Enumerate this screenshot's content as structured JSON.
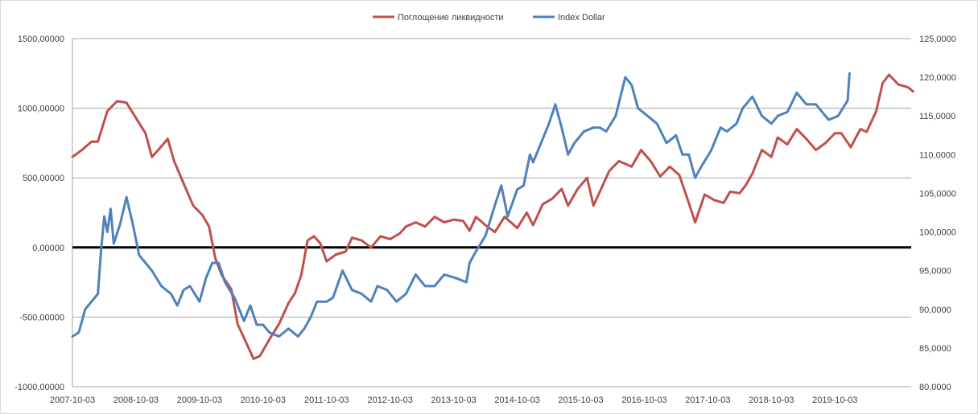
{
  "chart_data": {
    "type": "line",
    "title": "",
    "legend_position": "top",
    "grid": true,
    "x_tick_labels": [
      "2007-10-03",
      "2008-10-03",
      "2009-10-03",
      "2010-10-03",
      "2011-10-03",
      "2012-10-03",
      "2013-10-03",
      "2014-10-03",
      "2015-10-03",
      "2016-10-03",
      "2017-10-03",
      "2018-10-03",
      "2019-10-03"
    ],
    "y_left": {
      "range": [
        -1000,
        1500
      ],
      "ticks": [
        -1000,
        -500,
        0,
        500,
        1000,
        1500
      ],
      "tick_labels": [
        "-1000,00000",
        "-500,00000",
        "0,00000",
        "500,00000",
        "1000,00000",
        "1500,00000"
      ]
    },
    "y_right": {
      "range": [
        80,
        125
      ],
      "ticks": [
        80,
        85,
        90,
        95,
        100,
        105,
        110,
        115,
        120,
        125
      ],
      "tick_labels": [
        "80,0000",
        "85,0000",
        "90,0000",
        "95,0000",
        "100,0000",
        "105,0000",
        "110,0000",
        "115,0000",
        "120,0000",
        "125,0000"
      ]
    },
    "series": [
      {
        "name": "Поглощение ликвидности",
        "axis": "left",
        "color": "#c0504d",
        "points": [
          [
            2007.75,
            650
          ],
          [
            2007.9,
            700
          ],
          [
            2008.05,
            760
          ],
          [
            2008.15,
            760
          ],
          [
            2008.3,
            980
          ],
          [
            2008.45,
            1050
          ],
          [
            2008.6,
            1040
          ],
          [
            2008.75,
            930
          ],
          [
            2008.9,
            820
          ],
          [
            2009.0,
            650
          ],
          [
            2009.1,
            700
          ],
          [
            2009.25,
            780
          ],
          [
            2009.35,
            620
          ],
          [
            2009.5,
            460
          ],
          [
            2009.65,
            300
          ],
          [
            2009.8,
            230
          ],
          [
            2009.9,
            150
          ],
          [
            2010.0,
            -80
          ],
          [
            2010.1,
            -200
          ],
          [
            2010.25,
            -300
          ],
          [
            2010.35,
            -550
          ],
          [
            2010.5,
            -700
          ],
          [
            2010.6,
            -800
          ],
          [
            2010.7,
            -780
          ],
          [
            2010.85,
            -660
          ],
          [
            2011.0,
            -550
          ],
          [
            2011.15,
            -400
          ],
          [
            2011.25,
            -330
          ],
          [
            2011.35,
            -200
          ],
          [
            2011.45,
            50
          ],
          [
            2011.55,
            80
          ],
          [
            2011.65,
            30
          ],
          [
            2011.75,
            -100
          ],
          [
            2011.9,
            -50
          ],
          [
            2012.05,
            -30
          ],
          [
            2012.15,
            70
          ],
          [
            2012.3,
            50
          ],
          [
            2012.45,
            0
          ],
          [
            2012.6,
            80
          ],
          [
            2012.75,
            60
          ],
          [
            2012.9,
            100
          ],
          [
            2013.0,
            150
          ],
          [
            2013.15,
            180
          ],
          [
            2013.3,
            150
          ],
          [
            2013.45,
            220
          ],
          [
            2013.6,
            180
          ],
          [
            2013.75,
            200
          ],
          [
            2013.9,
            190
          ],
          [
            2014.0,
            120
          ],
          [
            2014.1,
            220
          ],
          [
            2014.25,
            160
          ],
          [
            2014.4,
            110
          ],
          [
            2014.55,
            220
          ],
          [
            2014.75,
            140
          ],
          [
            2014.9,
            250
          ],
          [
            2015.0,
            160
          ],
          [
            2015.15,
            310
          ],
          [
            2015.3,
            350
          ],
          [
            2015.45,
            420
          ],
          [
            2015.55,
            300
          ],
          [
            2015.7,
            420
          ],
          [
            2015.85,
            500
          ],
          [
            2015.95,
            300
          ],
          [
            2016.1,
            450
          ],
          [
            2016.2,
            550
          ],
          [
            2016.35,
            620
          ],
          [
            2016.55,
            580
          ],
          [
            2016.7,
            700
          ],
          [
            2016.85,
            620
          ],
          [
            2017.0,
            510
          ],
          [
            2017.15,
            580
          ],
          [
            2017.3,
            520
          ],
          [
            2017.45,
            320
          ],
          [
            2017.55,
            180
          ],
          [
            2017.7,
            380
          ],
          [
            2017.85,
            340
          ],
          [
            2018.0,
            320
          ],
          [
            2018.1,
            400
          ],
          [
            2018.25,
            390
          ],
          [
            2018.35,
            450
          ],
          [
            2018.45,
            530
          ],
          [
            2018.6,
            700
          ],
          [
            2018.75,
            650
          ],
          [
            2018.85,
            790
          ],
          [
            2019.0,
            740
          ],
          [
            2019.15,
            850
          ],
          [
            2019.3,
            780
          ],
          [
            2019.45,
            700
          ],
          [
            2019.6,
            750
          ],
          [
            2019.75,
            820
          ],
          [
            2019.85,
            820
          ],
          [
            2020.0,
            720
          ],
          [
            2020.15,
            850
          ],
          [
            2020.25,
            830
          ],
          [
            2020.4,
            980
          ],
          [
            2020.5,
            1180
          ],
          [
            2020.6,
            1240
          ],
          [
            2020.75,
            1170
          ],
          [
            2020.9,
            1150
          ],
          [
            2020.98,
            1120
          ]
        ]
      },
      {
        "name": "Index Dollar",
        "axis": "right",
        "color": "#4f81bd",
        "points": [
          [
            2007.75,
            86.5
          ],
          [
            2007.85,
            87
          ],
          [
            2007.95,
            90
          ],
          [
            2008.05,
            91
          ],
          [
            2008.15,
            92
          ],
          [
            2008.2,
            97.5
          ],
          [
            2008.25,
            102
          ],
          [
            2008.3,
            100
          ],
          [
            2008.35,
            103
          ],
          [
            2008.4,
            98.5
          ],
          [
            2008.5,
            101
          ],
          [
            2008.6,
            104.5
          ],
          [
            2008.7,
            101
          ],
          [
            2008.8,
            97
          ],
          [
            2008.9,
            96
          ],
          [
            2009.0,
            95
          ],
          [
            2009.15,
            93
          ],
          [
            2009.3,
            92
          ],
          [
            2009.4,
            90.5
          ],
          [
            2009.5,
            92.5
          ],
          [
            2009.6,
            93
          ],
          [
            2009.75,
            91
          ],
          [
            2009.85,
            94
          ],
          [
            2009.95,
            96
          ],
          [
            2010.05,
            96
          ],
          [
            2010.15,
            93.5
          ],
          [
            2010.3,
            91.5
          ],
          [
            2010.45,
            88.5
          ],
          [
            2010.55,
            90.5
          ],
          [
            2010.65,
            88
          ],
          [
            2010.75,
            88
          ],
          [
            2010.85,
            87
          ],
          [
            2011.0,
            86.5
          ],
          [
            2011.15,
            87.5
          ],
          [
            2011.3,
            86.5
          ],
          [
            2011.4,
            87.5
          ],
          [
            2011.5,
            89
          ],
          [
            2011.6,
            91
          ],
          [
            2011.75,
            91
          ],
          [
            2011.85,
            91.5
          ],
          [
            2012.0,
            95
          ],
          [
            2012.15,
            92.5
          ],
          [
            2012.3,
            92
          ],
          [
            2012.45,
            91
          ],
          [
            2012.55,
            93
          ],
          [
            2012.7,
            92.5
          ],
          [
            2012.85,
            91
          ],
          [
            2013.0,
            92
          ],
          [
            2013.15,
            94.5
          ],
          [
            2013.3,
            93
          ],
          [
            2013.45,
            93
          ],
          [
            2013.6,
            94.5
          ],
          [
            2013.8,
            94
          ],
          [
            2013.95,
            93.5
          ],
          [
            2014.0,
            96
          ],
          [
            2014.1,
            97.5
          ],
          [
            2014.25,
            99.5
          ],
          [
            2014.4,
            103.5
          ],
          [
            2014.5,
            106
          ],
          [
            2014.6,
            102
          ],
          [
            2014.75,
            105.5
          ],
          [
            2014.85,
            106
          ],
          [
            2014.95,
            110
          ],
          [
            2015.0,
            109
          ],
          [
            2015.1,
            111
          ],
          [
            2015.25,
            114
          ],
          [
            2015.35,
            116.5
          ],
          [
            2015.45,
            113.5
          ],
          [
            2015.55,
            110
          ],
          [
            2015.65,
            111.5
          ],
          [
            2015.8,
            113
          ],
          [
            2015.95,
            113.5
          ],
          [
            2016.05,
            113.5
          ],
          [
            2016.15,
            113
          ],
          [
            2016.3,
            115
          ],
          [
            2016.45,
            120
          ],
          [
            2016.55,
            119
          ],
          [
            2016.65,
            116
          ],
          [
            2016.8,
            115
          ],
          [
            2016.95,
            114
          ],
          [
            2017.1,
            111.5
          ],
          [
            2017.25,
            112.5
          ],
          [
            2017.35,
            110
          ],
          [
            2017.45,
            110
          ],
          [
            2017.55,
            107
          ],
          [
            2017.65,
            108.5
          ],
          [
            2017.8,
            110.5
          ],
          [
            2017.95,
            113.5
          ],
          [
            2018.05,
            113
          ],
          [
            2018.2,
            114
          ],
          [
            2018.3,
            116
          ],
          [
            2018.45,
            117.5
          ],
          [
            2018.6,
            115
          ],
          [
            2018.75,
            114
          ],
          [
            2018.85,
            115
          ],
          [
            2019.0,
            115.5
          ],
          [
            2019.15,
            118
          ],
          [
            2019.3,
            116.5
          ],
          [
            2019.45,
            116.5
          ],
          [
            2019.55,
            115.5
          ],
          [
            2019.65,
            114.5
          ],
          [
            2019.8,
            115
          ],
          [
            2019.95,
            117
          ],
          [
            2019.98,
            120.5
          ]
        ]
      }
    ]
  }
}
